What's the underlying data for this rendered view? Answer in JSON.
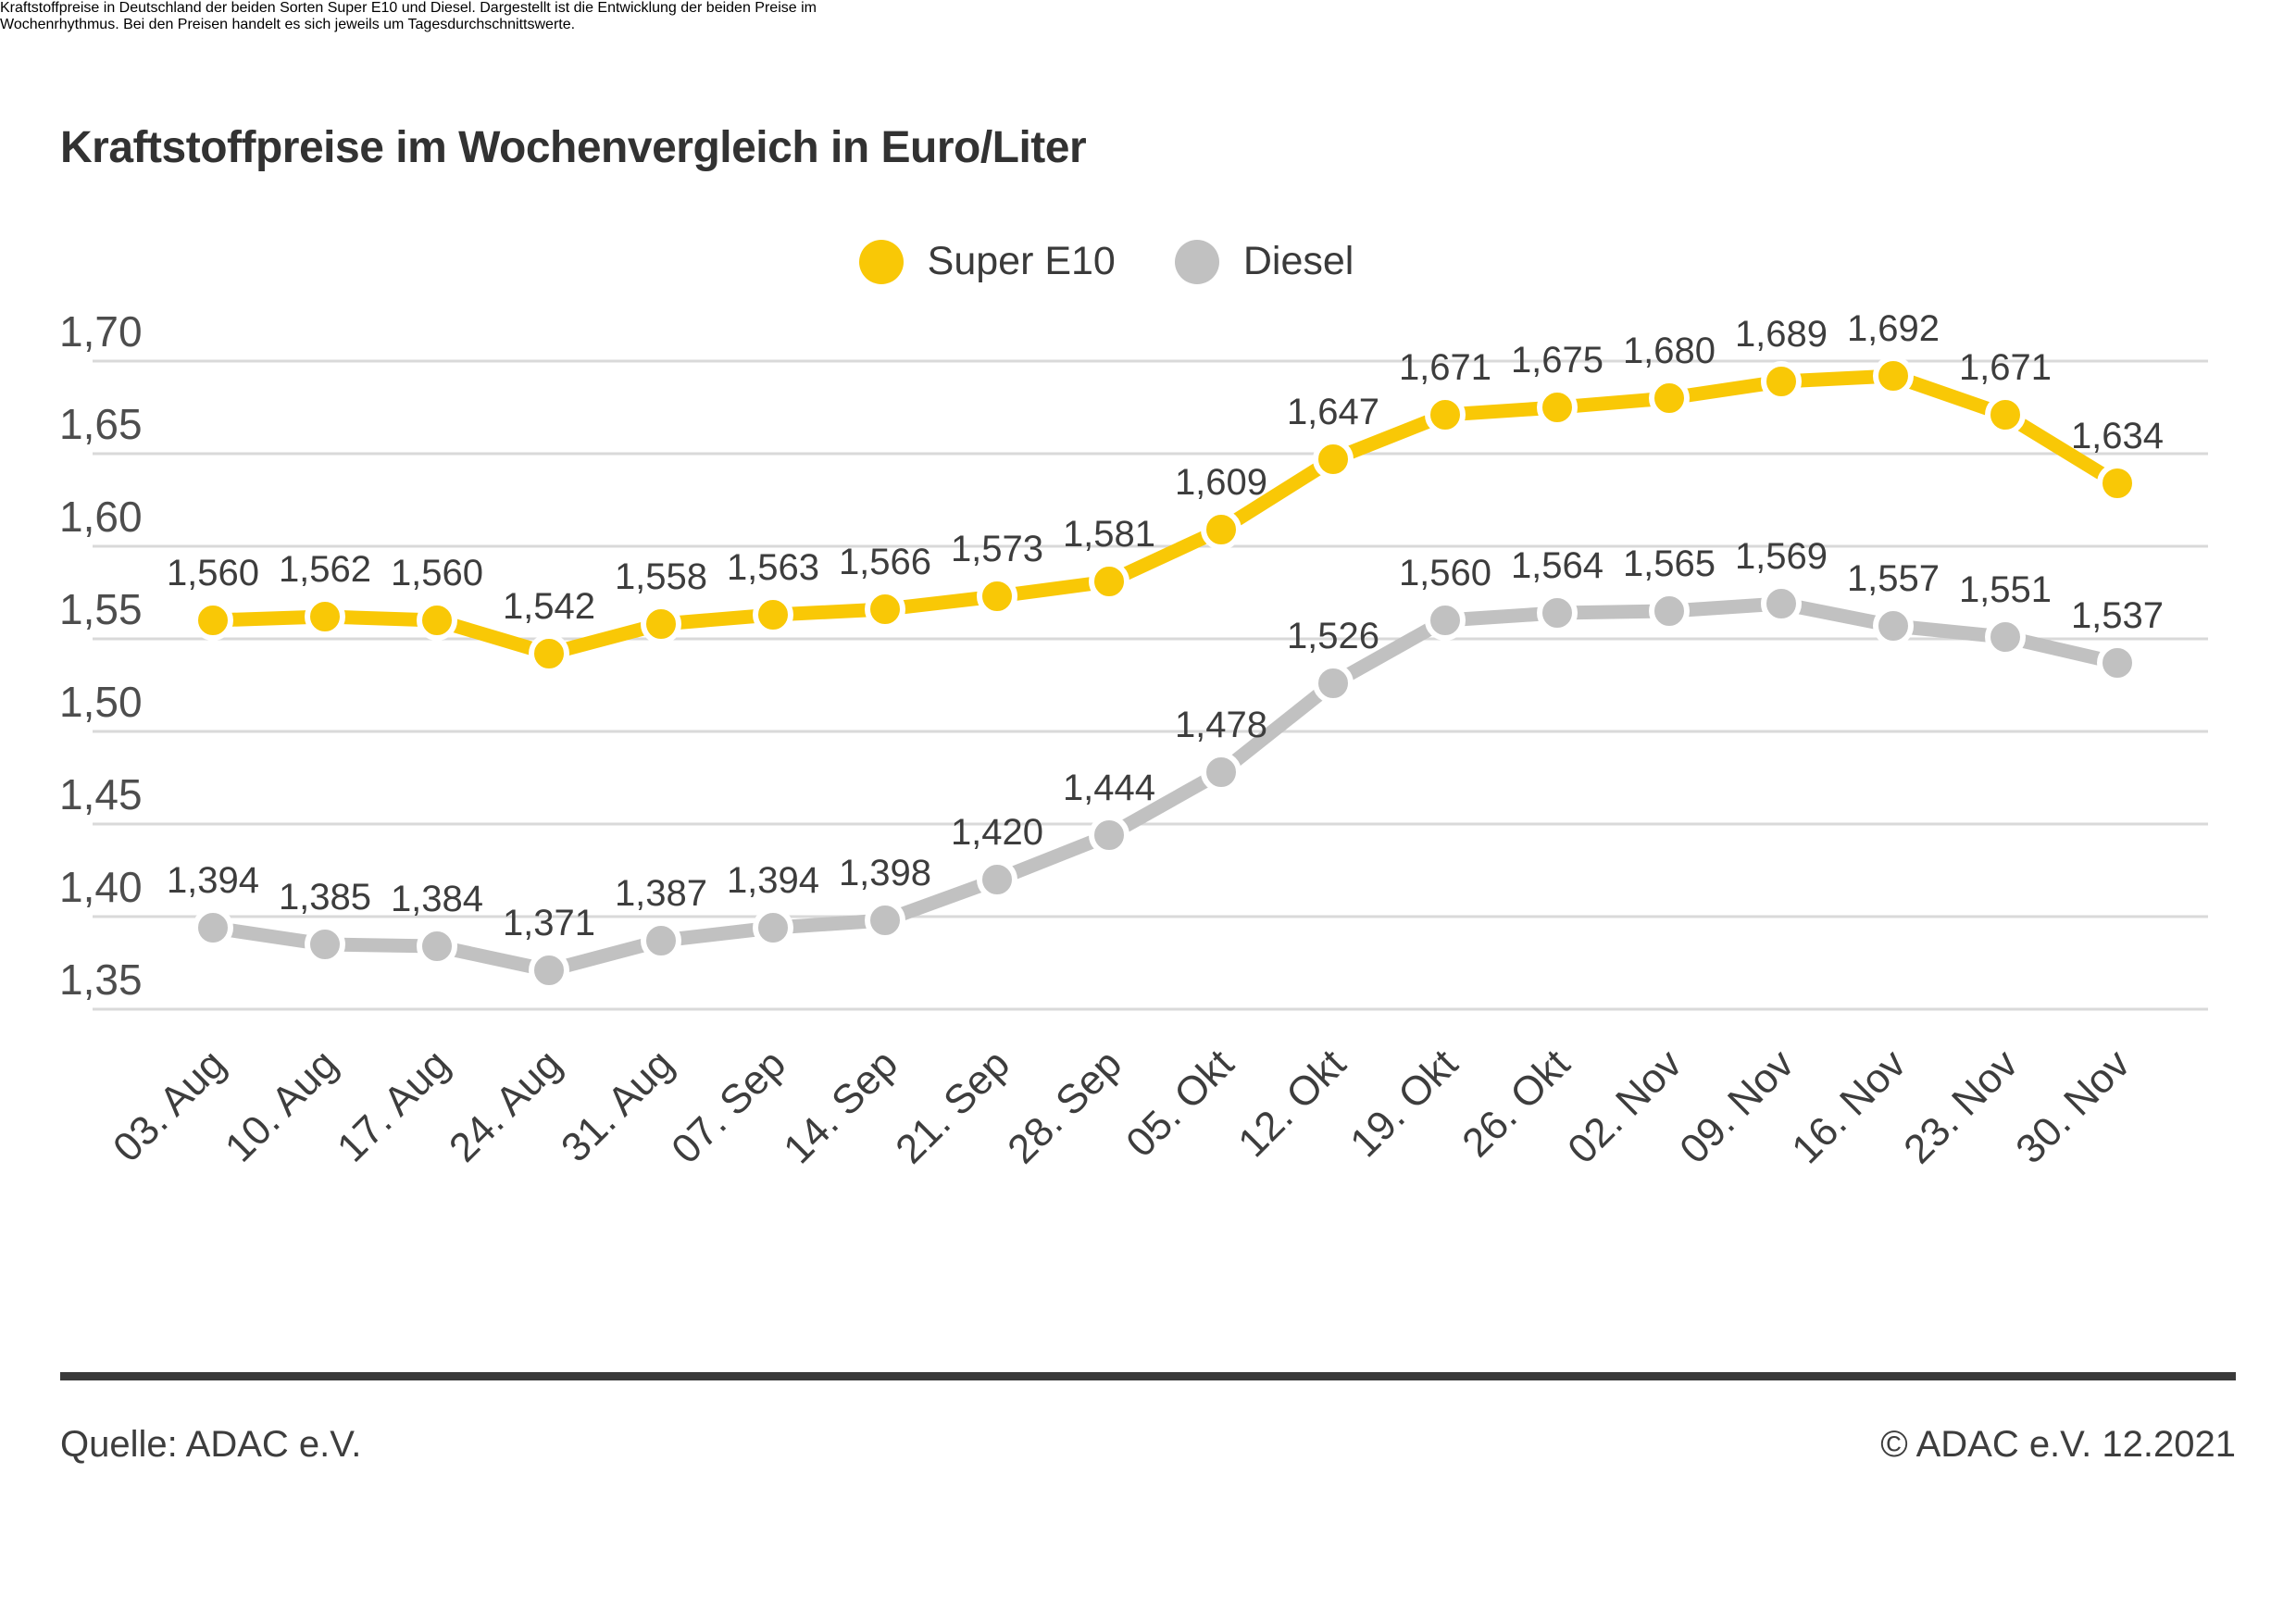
{
  "header": {
    "title": "Kraftstoffpreise im Wochenvergleich in Euro/Liter"
  },
  "legend": [
    {
      "label": "Super E10",
      "color": "#f9c806"
    },
    {
      "label": "Diesel",
      "color": "#c1c1c1"
    }
  ],
  "chart_data": {
    "type": "line",
    "title": "Kraftstoffpreise im Wochenvergleich in Euro/Liter",
    "xlabel": "",
    "ylabel": "Euro/Liter",
    "ylim": [
      1.35,
      1.7
    ],
    "yticks": [
      1.7,
      1.65,
      1.6,
      1.55,
      1.5,
      1.45,
      1.4,
      1.35
    ],
    "grid": true,
    "grid_color": "#d9d9d9",
    "legend_position": "top-center",
    "decimal_separator": ",",
    "categories": [
      "03. Aug",
      "10. Aug",
      "17. Aug",
      "24. Aug",
      "31. Aug",
      "07. Sep",
      "14. Sep",
      "21. Sep",
      "28. Sep",
      "05. Okt",
      "12. Okt",
      "19. Okt",
      "26. Okt",
      "02. Nov",
      "09. Nov",
      "16. Nov",
      "23. Nov",
      "30. Nov"
    ],
    "series": [
      {
        "name": "Super E10",
        "color": "#f9c806",
        "values": [
          1.56,
          1.562,
          1.56,
          1.542,
          1.558,
          1.563,
          1.566,
          1.573,
          1.581,
          1.609,
          1.647,
          1.671,
          1.675,
          1.68,
          1.689,
          1.692,
          1.671,
          1.634
        ]
      },
      {
        "name": "Diesel",
        "color": "#c1c1c1",
        "values": [
          1.394,
          1.385,
          1.384,
          1.371,
          1.387,
          1.394,
          1.398,
          1.42,
          1.444,
          1.478,
          1.526,
          1.56,
          1.564,
          1.565,
          1.569,
          1.557,
          1.551,
          1.537
        ]
      }
    ]
  },
  "caption": {
    "lines": [
      "Kraftstoffpreise in Deutschland der beiden Sorten Super E10 und Diesel. Dargestellt ist die Entwicklung der beiden Preise im",
      "Wochenrhythmus. Bei den Preisen handelt es sich jeweils um Tagesdurchschnittswerte."
    ]
  },
  "footer": {
    "source": "Quelle: ADAC e.V.",
    "copyright": "© ADAC e.V. 12.2021"
  }
}
